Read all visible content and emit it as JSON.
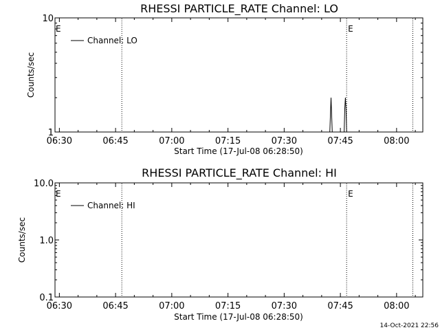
{
  "timestamp": "14-Oct-2021 22:56",
  "chart_data": [
    {
      "type": "line",
      "title": "RHESSI PARTICLE_RATE Channel: LO",
      "xlabel": "Start Time (17-Jul-08 06:28:50)",
      "ylabel": "Counts/sec",
      "yscale": "log",
      "xlim": [
        "06:28:50",
        "08:07:00"
      ],
      "ylim": [
        1,
        10
      ],
      "xticks": [
        "06:30",
        "06:45",
        "07:00",
        "07:15",
        "07:30",
        "07:45",
        "08:00"
      ],
      "yticks": [
        "1",
        "10"
      ],
      "grid": false,
      "legend_position": "top-left",
      "series": [
        {
          "name": "Channel: LO",
          "x": [
            "07:42:10",
            "07:42:20",
            "07:42:30",
            "07:42:40",
            "07:42:50",
            "07:46:00",
            "07:46:10",
            "07:46:20",
            "07:46:30",
            "07:46:40"
          ],
          "y": [
            1,
            1.4,
            2.0,
            1.4,
            1,
            1,
            1.6,
            2.0,
            1.6,
            1
          ]
        }
      ],
      "markers": [
        {
          "time": "06:46:40",
          "flag": ""
        },
        {
          "time": "07:46:40",
          "flag": "E"
        },
        {
          "time": "08:04:20",
          "flag": ""
        }
      ],
      "left_flag": "E"
    },
    {
      "type": "line",
      "title": "RHESSI PARTICLE_RATE Channel: HI",
      "xlabel": "Start Time (17-Jul-08 06:28:50)",
      "ylabel": "Counts/sec",
      "yscale": "log",
      "xlim": [
        "06:28:50",
        "08:07:00"
      ],
      "ylim": [
        0.1,
        10
      ],
      "xticks": [
        "06:30",
        "06:45",
        "07:00",
        "07:15",
        "07:30",
        "07:45",
        "08:00"
      ],
      "yticks": [
        "0.1",
        "1.0",
        "10.0"
      ],
      "grid": false,
      "legend_position": "top-left",
      "series": [
        {
          "name": "Channel: HI",
          "x": [],
          "y": []
        }
      ],
      "markers": [
        {
          "time": "06:46:40",
          "flag": ""
        },
        {
          "time": "07:46:40",
          "flag": "E"
        },
        {
          "time": "08:04:20",
          "flag": ""
        }
      ],
      "left_flag": "E"
    }
  ]
}
